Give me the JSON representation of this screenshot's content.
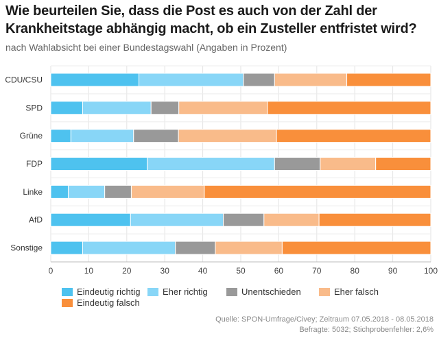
{
  "title": "Wie beurteilen Sie, dass die Post es auch von der Zahl der Krankheitstage abhängig macht, ob ein Zusteller entfristet wird?",
  "subtitle": "nach Wahlabsicht bei einer Bundestagswahl (Angaben in Prozent)",
  "source_line1": "Quelle: SPON-Umfrage/Civey; Zeitraum 07.05.2018 - 08.05.2018",
  "source_line2": "Befragte: 5032; Stichprobenfehler: 2,6%",
  "colors": {
    "Eindeutig richtig": "#4ec2ef",
    "Eher richtig": "#88d6f7",
    "Unentschieden": "#999999",
    "Eher falsch": "#f9bb8a",
    "Eindeutig falsch": "#f98f3b"
  },
  "chart_data": {
    "type": "bar",
    "orientation": "horizontal",
    "stacked": true,
    "title": "Wie beurteilen Sie, dass die Post es auch von der Zahl der Krankheitstage abhängig macht, ob ein Zusteller entfristet wird?",
    "subtitle": "nach Wahlabsicht bei einer Bundestagswahl (Angaben in Prozent)",
    "categories": [
      "CDU/CSU",
      "SPD",
      "Grüne",
      "FDP",
      "Linke",
      "AfD",
      "Sonstige"
    ],
    "series": [
      {
        "name": "Eindeutig richtig",
        "values": [
          23.2,
          8.4,
          5.3,
          25.4,
          4.6,
          21.0,
          8.4
        ]
      },
      {
        "name": "Eher richtig",
        "values": [
          27.5,
          18.0,
          16.5,
          33.5,
          9.6,
          24.4,
          24.4
        ]
      },
      {
        "name": "Unentschieden",
        "values": [
          8.2,
          7.3,
          11.8,
          12.0,
          7.0,
          10.7,
          10.5
        ]
      },
      {
        "name": "Eher falsch",
        "values": [
          19.0,
          23.3,
          25.8,
          14.6,
          19.2,
          14.5,
          17.6
        ]
      },
      {
        "name": "Eindeutig falsch",
        "values": [
          22.1,
          43.0,
          40.6,
          14.5,
          59.6,
          29.4,
          39.1
        ]
      }
    ],
    "xlim": [
      0,
      100
    ],
    "xticks": [
      0,
      10,
      20,
      30,
      40,
      50,
      60,
      70,
      80,
      90,
      100
    ],
    "grid": true,
    "legend": "bottom"
  }
}
